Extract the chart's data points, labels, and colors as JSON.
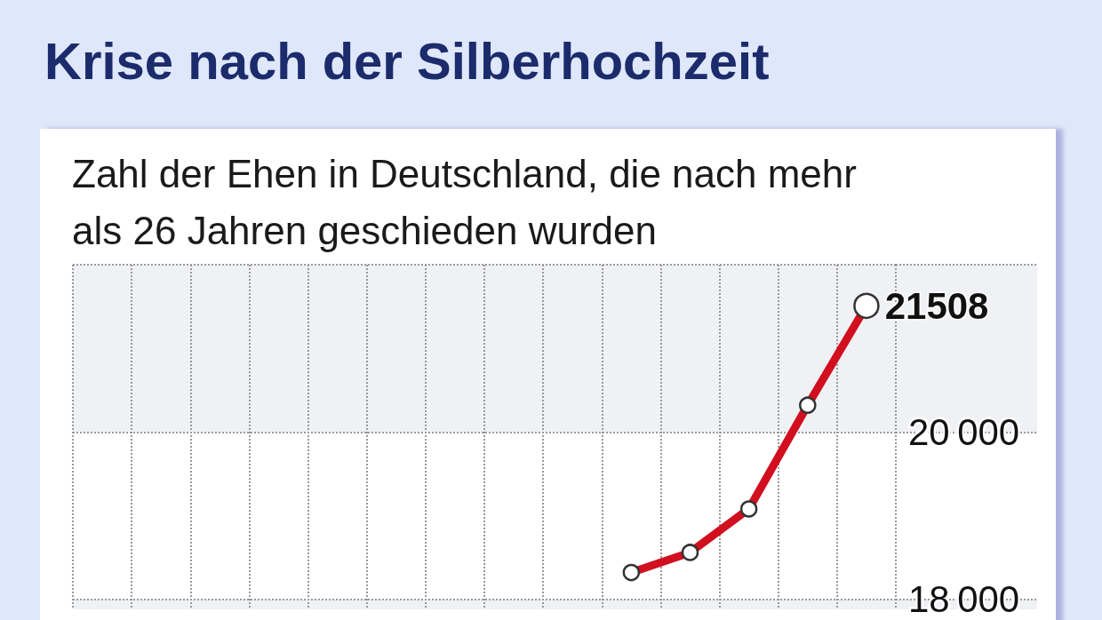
{
  "chart_data": {
    "type": "line",
    "title": "Krise nach der Silberhochzeit",
    "subtitle": "Zahl der Ehen in Deutschland, die nach mehr als 26 Jahren geschieden wurden",
    "categories": [
      null,
      null,
      null,
      null,
      null,
      null,
      null,
      null,
      null,
      null,
      null,
      null,
      null,
      null
    ],
    "values": [
      null,
      null,
      null,
      null,
      null,
      null,
      null,
      null,
      null,
      18320,
      18560,
      19080,
      20320,
      21508
    ],
    "value_labels": [
      null,
      null,
      null,
      null,
      null,
      null,
      null,
      null,
      null,
      null,
      null,
      null,
      null,
      "21508"
    ],
    "color": "#d10f1f",
    "ylim": [
      17880,
      22000
    ],
    "yticks": [
      {
        "value": 18000,
        "label": "18 000"
      },
      {
        "value": 20000,
        "label": "20 000"
      },
      {
        "value": 22000,
        "label": null
      }
    ],
    "bands": [
      {
        "axis": "y",
        "from": 20000,
        "to": 22000,
        "color": "#f0f1f5"
      },
      {
        "axis": "y",
        "from": 17880,
        "to": 18000,
        "color": "#f0f1f5"
      }
    ],
    "grid": true,
    "marker": "circle",
    "line_style": "solid",
    "tick_labels": "y"
  }
}
